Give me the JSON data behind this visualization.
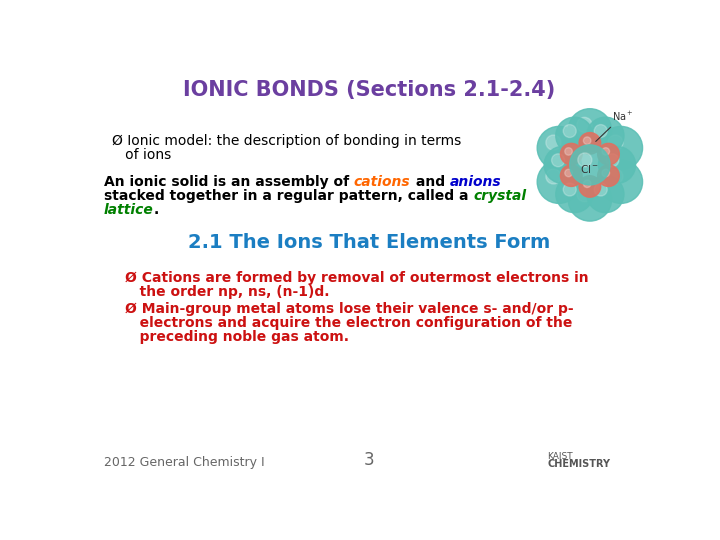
{
  "title": "IONIC BONDS (Sections 2.1-2.4)",
  "title_color": "#6B3FA0",
  "title_fontsize": 15,
  "bg_color": "#FFFFFF",
  "bullet1_line1": "Ø Ionic model: the description of bonding in terms",
  "bullet1_line2": "   of ions",
  "bullet1_color": "#000000",
  "bullet1_fontsize": 10,
  "para_fontsize": 10,
  "section_title": "2.1 The Ions That Elements Form",
  "section_title_color": "#1B7EC2",
  "section_title_fontsize": 14,
  "red_bullet1_line1": "Ø Cations are formed by removal of outermost electrons in",
  "red_bullet1_line2": "   the order np, ns, (n-1)d.",
  "red_bullet2_line1": "Ø Main-group metal atoms lose their valence s- and/or p-",
  "red_bullet2_line2": "   electrons and acquire the electron configuration of the",
  "red_bullet2_line3": "   preceding noble gas atom.",
  "red_color": "#CC1111",
  "red_fontsize": 10,
  "footer_left": "2012 General Chemistry I",
  "footer_center": "3",
  "footer_color": "#666666",
  "footer_fontsize": 9,
  "orange_color": "#FF6600",
  "blue_color": "#0000CC",
  "green_color": "#008000",
  "black_color": "#000000",
  "teal_color": "#5BBFB5",
  "salmon_color": "#E07060"
}
